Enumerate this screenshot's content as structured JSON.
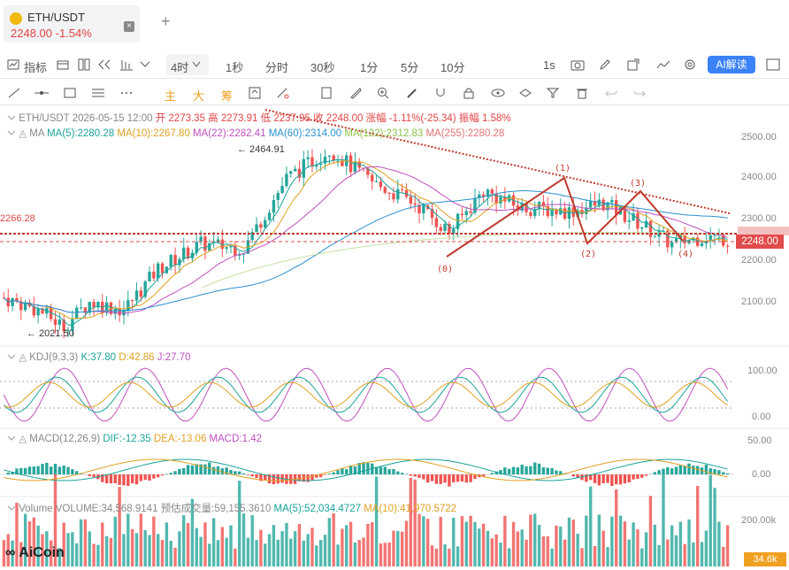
{
  "tab": {
    "symbol": "ETH/USDT",
    "price": "2248.00",
    "change": "-1.54%",
    "close": "×",
    "add": "+"
  },
  "toolbar1": {
    "indicators": "指标",
    "timeframe": "4时",
    "intervals": [
      "1秒",
      "分时",
      "30秒",
      "1分",
      "5分",
      "10分"
    ],
    "right_interval": "1s",
    "ai": "AI解读"
  },
  "toolbar2": {
    "zhu": "主",
    "da": "大",
    "chou": "筹"
  },
  "info": {
    "line1_label": "ETH/USDT 2026-05-15 12:00",
    "open": "开 2273.35",
    "high": "高 2273.91",
    "low": "低 2237.95",
    "close": "收 2248.00",
    "change": "涨幅 -1.11%(-25.34)",
    "amp": "振幅 1.58%",
    "ma_label": "MA",
    "ma5": "MA(5):2280.28",
    "ma10": "MA(10):2267.80",
    "ma22": "MA(22):2282.41",
    "ma60": "MA(60):2314.00",
    "ma122": "MA(122):2312.83",
    "ma255": "MA(255):2280.28"
  },
  "kdj": {
    "label": "KDJ(9,3,3)",
    "k": "K:37.80",
    "d": "D:42.86",
    "j": "J:27.70"
  },
  "macd": {
    "label": "MACD(12,26,9)",
    "dif": "DIF:-12.35",
    "dea": "DEA:-13.06",
    "macd": "MACD:1.42"
  },
  "volume": {
    "label": "Volume",
    "value": "VOLUME:34,568.9141",
    "est": "预估成交量:59,155.3610",
    "ma5": "MA(5):52,034.4727",
    "ma10": "MA(10):41,970.5722"
  },
  "price_axis": [
    "2500.00",
    "2400.00",
    "2300.00",
    "2200.00",
    "2100.00"
  ],
  "kdj_axis": [
    "100.00",
    "0.00"
  ],
  "macd_axis": [
    "50.00",
    "0.00"
  ],
  "vol_axis": [
    "200.00k"
  ],
  "last_price": "2248.00",
  "prev_line_price": "2266.28",
  "left_line_label": "2266.28",
  "high_marker": "← 2464.91",
  "low_marker": "← 2021.50",
  "wave_labels": [
    "(0)",
    "(1)",
    "(2)",
    "(3)",
    "(4)"
  ],
  "vol_tag": "34.6k",
  "logo": "AiCoin",
  "colors": {
    "up": "#26a69a",
    "down": "#ef5350",
    "accent": "#3b82f6",
    "trend": "#c0392b"
  }
}
